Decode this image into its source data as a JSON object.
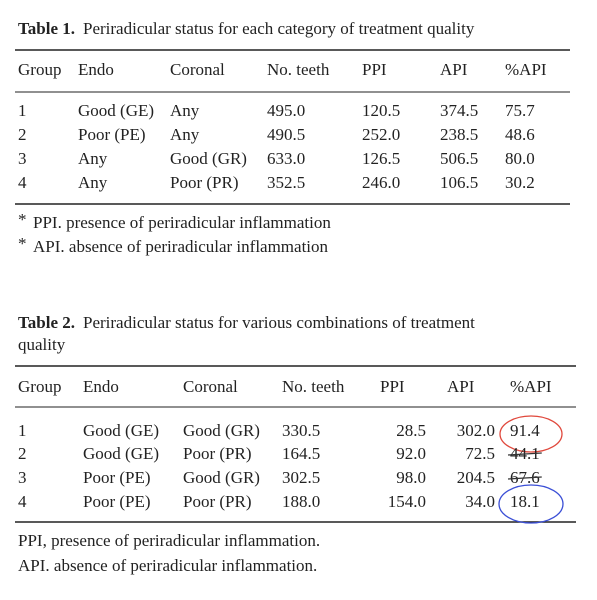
{
  "table1": {
    "label": "Table 1.",
    "title_lines": [
      "Periradicular status for each category of treatment quality"
    ],
    "columns": [
      "Group",
      "Endo",
      "Coronal",
      "No. teeth",
      "PPI",
      "API",
      "%API"
    ],
    "rows": [
      [
        "1",
        "Good (GE)",
        "Any",
        "495.0",
        "120.5",
        "374.5",
        "75.7"
      ],
      [
        "2",
        "Poor (PE)",
        "Any",
        "490.5",
        "252.0",
        "238.5",
        "48.6"
      ],
      [
        "3",
        "Any",
        "Good (GR)",
        "633.0",
        "126.5",
        "506.5",
        "80.0"
      ],
      [
        "4",
        "Any",
        "Poor (PR)",
        "352.5",
        "246.0",
        "106.5",
        "30.2"
      ]
    ],
    "footnotes": [
      {
        "mark": "*",
        "text": "PPI. presence of periradicular inflammation"
      },
      {
        "mark": "*",
        "text": "API. absence of periradicular inflammation"
      }
    ]
  },
  "table2": {
    "label": "Table 2.",
    "title_lines": [
      "Periradicular status for various combinations of treatment",
      "quality"
    ],
    "columns": [
      "Group",
      "Endo",
      "Coronal",
      "No. teeth",
      "PPI",
      "API",
      "%API"
    ],
    "rows": [
      [
        "1",
        "Good (GE)",
        "Good (GR)",
        "330.5",
        "28.5",
        "302.0",
        "91.4"
      ],
      [
        "2",
        "Good (GE)",
        "Poor (PR)",
        "164.5",
        "92.0",
        "72.5",
        "44.1"
      ],
      [
        "3",
        "Poor (PE)",
        "Good (GR)",
        "302.5",
        "98.0",
        "204.5",
        "67.6"
      ],
      [
        "4",
        "Poor (PE)",
        "Poor (PR)",
        "188.0",
        "154.0",
        "34.0",
        "18.1"
      ]
    ],
    "footnotes": [
      {
        "text": "PPI, presence of periradicular inflammation."
      },
      {
        "text": "API. absence of periradicular inflammation."
      }
    ]
  }
}
